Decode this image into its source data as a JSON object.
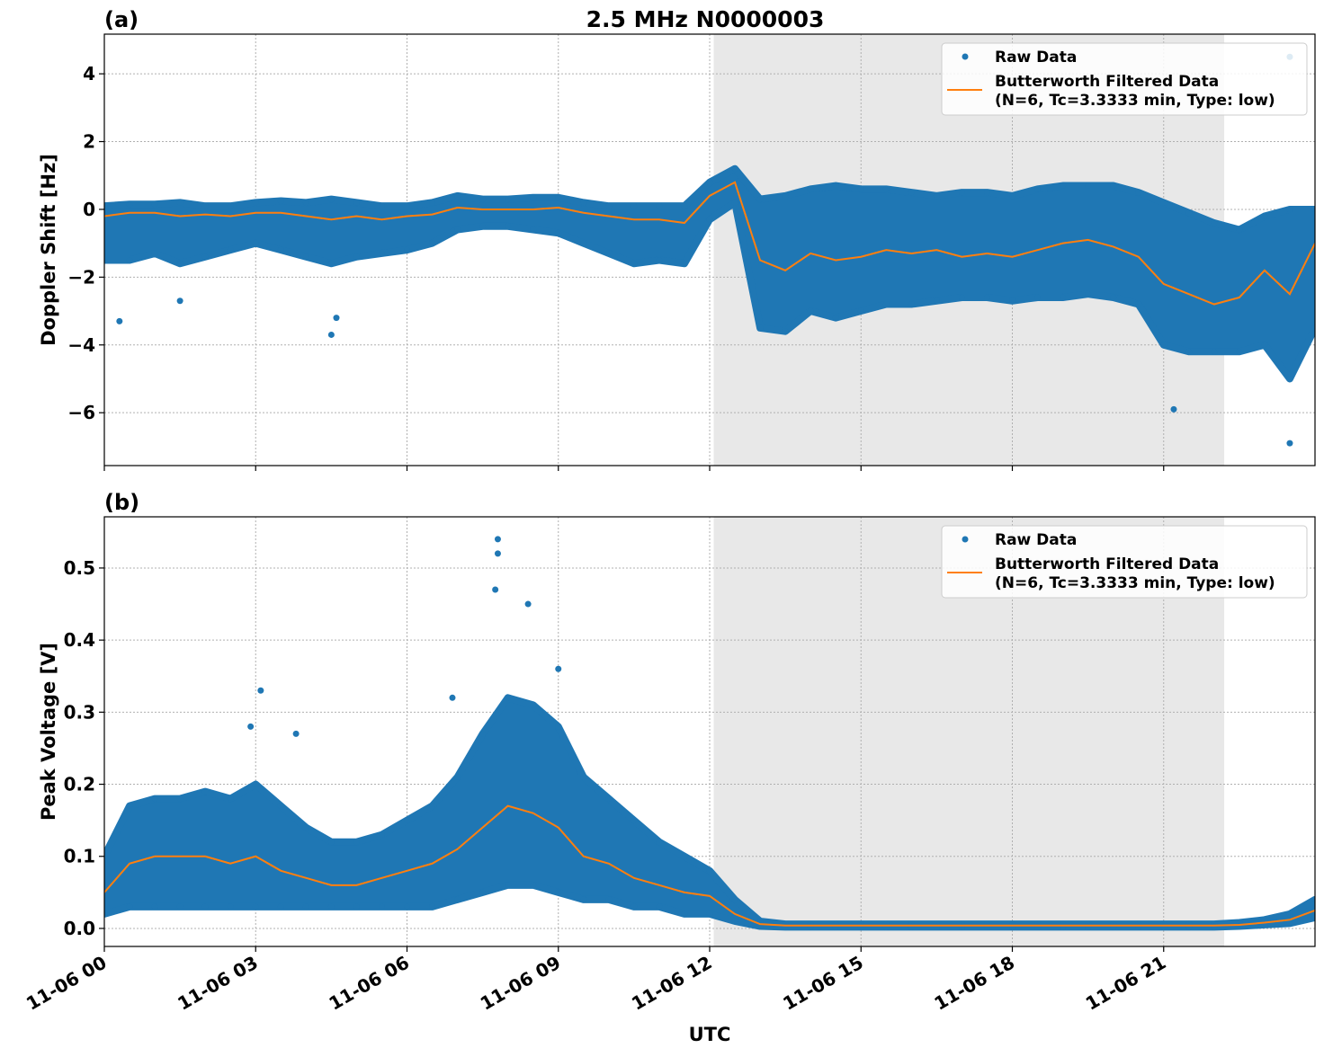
{
  "title": "2.5 MHz N0000003",
  "colors": {
    "raw": "#1f77b4",
    "filtered": "#ff7f0e",
    "shade": "#e8e8e8"
  },
  "chart_data": [
    {
      "type": "scatter",
      "panel_label": "(a)",
      "ylabel": "Doppler Shift [Hz]",
      "xlabel": "",
      "ylim": [
        -7.56,
        5.17
      ],
      "xlim_hours": [
        0,
        24
      ],
      "yticks": [
        4,
        2,
        0,
        -2,
        -4,
        -6
      ],
      "ytick_labels": [
        "4",
        "2",
        "0",
        "−2",
        "−4",
        "−6"
      ],
      "grid": true,
      "legend_placement": "top-right",
      "shaded_interval_hours": [
        12.08,
        22.2
      ],
      "legend": [
        "Raw Data",
        "Butterworth Filtered Data",
        "(N=6, Tc=3.3333 min, Type: low)"
      ],
      "x_hours": [
        0,
        0.5,
        1,
        1.5,
        2,
        2.5,
        3,
        3.5,
        4,
        4.5,
        5,
        5.5,
        6,
        6.5,
        7,
        7.5,
        8,
        8.5,
        9,
        9.5,
        10,
        10.5,
        11,
        11.5,
        12,
        12.5,
        13,
        13.5,
        14,
        14.5,
        15,
        15.5,
        16,
        16.5,
        17,
        17.5,
        18,
        18.5,
        19,
        19.5,
        20,
        20.5,
        21,
        21.5,
        22,
        22.5,
        23,
        23.5,
        24
      ],
      "filtered": [
        -0.2,
        -0.1,
        -0.1,
        -0.2,
        -0.15,
        -0.2,
        -0.1,
        -0.1,
        -0.2,
        -0.3,
        -0.2,
        -0.3,
        -0.2,
        -0.15,
        0.05,
        0.0,
        0.0,
        0.0,
        0.05,
        -0.1,
        -0.2,
        -0.3,
        -0.3,
        -0.4,
        0.4,
        0.8,
        -1.5,
        -1.8,
        -1.3,
        -1.5,
        -1.4,
        -1.2,
        -1.3,
        -1.2,
        -1.4,
        -1.3,
        -1.4,
        -1.2,
        -1.0,
        -0.9,
        -1.1,
        -1.4,
        -2.2,
        -2.5,
        -2.8,
        -2.6,
        -1.8,
        -2.5,
        -1.0
      ],
      "raw_low": [
        -1.5,
        -1.5,
        -1.3,
        -1.6,
        -1.4,
        -1.2,
        -1.0,
        -1.2,
        -1.4,
        -1.6,
        -1.4,
        -1.3,
        -1.2,
        -1.0,
        -0.6,
        -0.5,
        -0.5,
        -0.6,
        -0.7,
        -1.0,
        -1.3,
        -1.6,
        -1.5,
        -1.6,
        -0.3,
        0.2,
        -3.5,
        -3.6,
        -3.0,
        -3.2,
        -3.0,
        -2.8,
        -2.8,
        -2.7,
        -2.6,
        -2.6,
        -2.7,
        -2.6,
        -2.6,
        -2.5,
        -2.6,
        -2.8,
        -4.0,
        -4.2,
        -4.2,
        -4.2,
        -4.0,
        -5.0,
        -3.5
      ],
      "raw_high": [
        0.1,
        0.15,
        0.15,
        0.2,
        0.1,
        0.1,
        0.2,
        0.25,
        0.2,
        0.3,
        0.2,
        0.1,
        0.1,
        0.2,
        0.4,
        0.3,
        0.3,
        0.35,
        0.35,
        0.2,
        0.1,
        0.1,
        0.1,
        0.1,
        0.8,
        1.2,
        0.3,
        0.4,
        0.6,
        0.7,
        0.6,
        0.6,
        0.5,
        0.4,
        0.5,
        0.5,
        0.4,
        0.6,
        0.7,
        0.7,
        0.7,
        0.5,
        0.2,
        -0.1,
        -0.4,
        -0.6,
        -0.2,
        0.0,
        0.0
      ],
      "raw_outliers": [
        [
          23.5,
          4.5
        ],
        [
          23.5,
          -6.9
        ],
        [
          21.2,
          -5.9
        ],
        [
          4.5,
          -3.7
        ],
        [
          0.3,
          -3.3
        ],
        [
          1.5,
          -2.7
        ],
        [
          4.6,
          -3.2
        ]
      ]
    },
    {
      "type": "scatter",
      "panel_label": "(b)",
      "ylabel": "Peak Voltage [V]",
      "xlabel": "UTC",
      "ylim": [
        -0.025,
        0.571
      ],
      "xlim_hours": [
        0,
        24
      ],
      "yticks": [
        0.5,
        0.4,
        0.3,
        0.2,
        0.1,
        0.0
      ],
      "ytick_labels": [
        "0.5",
        "0.4",
        "0.3",
        "0.2",
        "0.1",
        "0.0"
      ],
      "xtick_hours": [
        0,
        3,
        6,
        9,
        12,
        15,
        18,
        21
      ],
      "xtick_labels": [
        "11-06 00",
        "11-06 03",
        "11-06 06",
        "11-06 09",
        "11-06 12",
        "11-06 15",
        "11-06 18",
        "11-06 21"
      ],
      "grid": true,
      "legend_placement": "top-right",
      "shaded_interval_hours": [
        12.08,
        22.2
      ],
      "legend": [
        "Raw Data",
        "Butterworth Filtered Data",
        "(N=6, Tc=3.3333 min, Type: low)"
      ],
      "x_hours": [
        0,
        0.5,
        1,
        1.5,
        2,
        2.5,
        3,
        3.5,
        4,
        4.5,
        5,
        5.5,
        6,
        6.5,
        7,
        7.5,
        8,
        8.5,
        9,
        9.5,
        10,
        10.5,
        11,
        11.5,
        12,
        12.5,
        13,
        13.5,
        14,
        14.5,
        15,
        15.5,
        16,
        16.5,
        17,
        17.5,
        18,
        18.5,
        19,
        19.5,
        20,
        20.5,
        21,
        21.5,
        22,
        22.5,
        23,
        23.5,
        24
      ],
      "filtered": [
        0.05,
        0.09,
        0.1,
        0.1,
        0.1,
        0.09,
        0.1,
        0.08,
        0.07,
        0.06,
        0.06,
        0.07,
        0.08,
        0.09,
        0.11,
        0.14,
        0.17,
        0.16,
        0.14,
        0.1,
        0.09,
        0.07,
        0.06,
        0.05,
        0.045,
        0.02,
        0.006,
        0.004,
        0.004,
        0.004,
        0.004,
        0.004,
        0.004,
        0.004,
        0.004,
        0.004,
        0.004,
        0.004,
        0.004,
        0.004,
        0.004,
        0.004,
        0.004,
        0.004,
        0.004,
        0.005,
        0.008,
        0.012,
        0.025
      ],
      "raw_low": [
        0.02,
        0.03,
        0.03,
        0.03,
        0.03,
        0.03,
        0.03,
        0.03,
        0.03,
        0.03,
        0.03,
        0.03,
        0.03,
        0.03,
        0.04,
        0.05,
        0.06,
        0.06,
        0.05,
        0.04,
        0.04,
        0.03,
        0.03,
        0.02,
        0.02,
        0.01,
        0.003,
        0.002,
        0.002,
        0.002,
        0.002,
        0.002,
        0.002,
        0.002,
        0.002,
        0.002,
        0.002,
        0.002,
        0.002,
        0.002,
        0.002,
        0.002,
        0.002,
        0.002,
        0.002,
        0.003,
        0.005,
        0.007,
        0.015
      ],
      "raw_high": [
        0.1,
        0.17,
        0.18,
        0.18,
        0.19,
        0.18,
        0.2,
        0.17,
        0.14,
        0.12,
        0.12,
        0.13,
        0.15,
        0.17,
        0.21,
        0.27,
        0.32,
        0.31,
        0.28,
        0.21,
        0.18,
        0.15,
        0.12,
        0.1,
        0.08,
        0.04,
        0.01,
        0.006,
        0.006,
        0.006,
        0.006,
        0.006,
        0.006,
        0.006,
        0.006,
        0.006,
        0.006,
        0.006,
        0.006,
        0.006,
        0.006,
        0.006,
        0.006,
        0.006,
        0.006,
        0.008,
        0.012,
        0.02,
        0.04
      ],
      "raw_outliers": [
        [
          7.8,
          0.54
        ],
        [
          7.8,
          0.52
        ],
        [
          8.4,
          0.45
        ],
        [
          7.75,
          0.47
        ],
        [
          3.1,
          0.33
        ],
        [
          6.9,
          0.32
        ],
        [
          3.8,
          0.27
        ],
        [
          2.9,
          0.28
        ],
        [
          9.0,
          0.36
        ]
      ]
    }
  ]
}
